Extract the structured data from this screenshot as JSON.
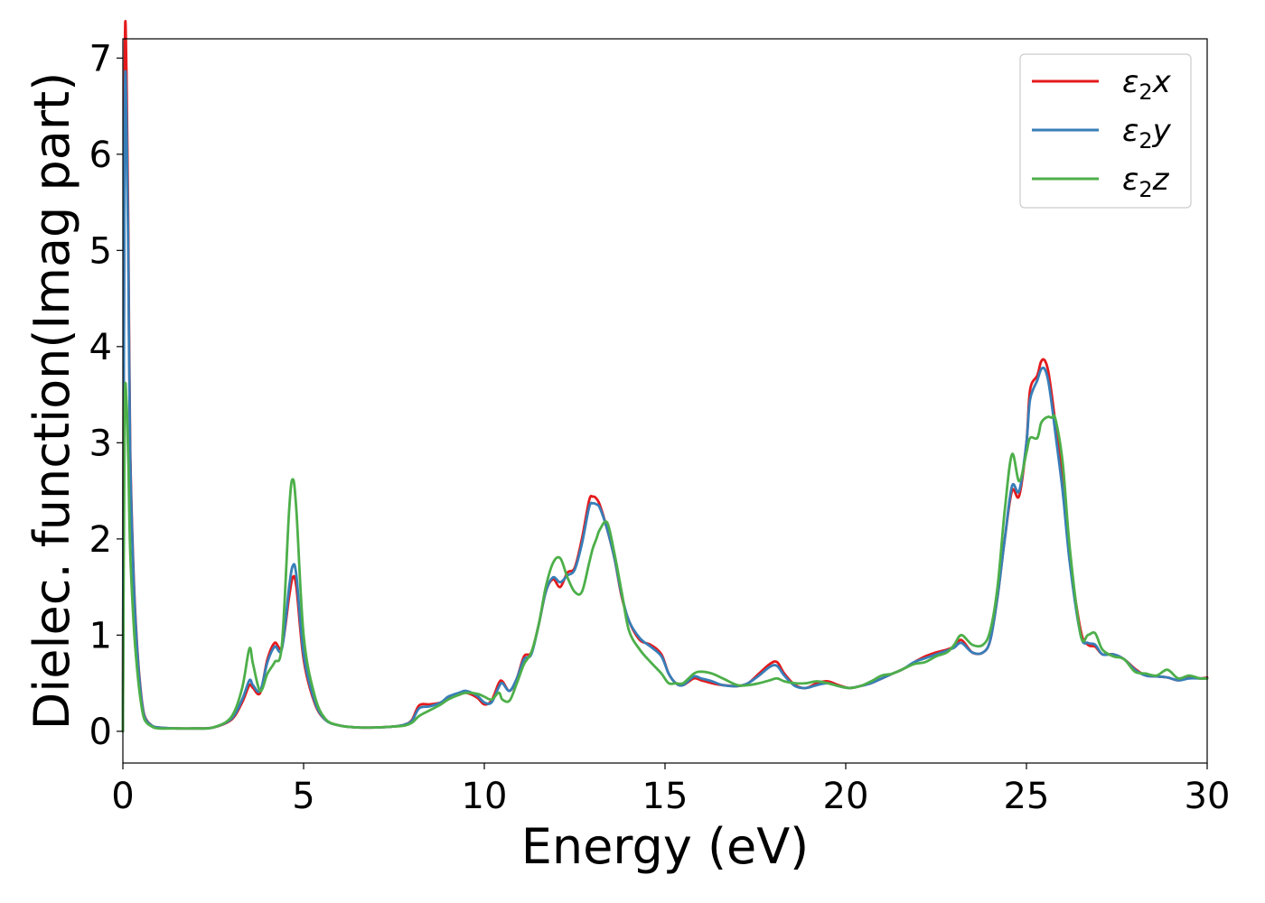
{
  "chart_data": {
    "type": "line",
    "title": "",
    "xlabel": "Energy (eV)",
    "ylabel": "Dielec. function(Imag part)",
    "xlim": [
      0,
      30
    ],
    "ylim": [
      -0.33,
      7.2
    ],
    "xticks": [
      0,
      5,
      10,
      15,
      20,
      25,
      30
    ],
    "yticks": [
      0,
      1,
      2,
      3,
      4,
      5,
      6,
      7
    ],
    "grid": false,
    "legend_placement": "top-right",
    "series": [
      {
        "name": "ε2x",
        "legend_base": "ε",
        "legend_sub": "2",
        "legend_suffix": "x",
        "color": "#e41a1c",
        "x": [
          0.0,
          0.05,
          0.1,
          0.15,
          0.2,
          0.3,
          0.4,
          0.5,
          0.6,
          0.8,
          1.0,
          1.5,
          2.0,
          2.5,
          3.0,
          3.3,
          3.5,
          3.6,
          3.8,
          4.0,
          4.2,
          4.4,
          4.6,
          4.7,
          4.8,
          5.0,
          5.3,
          5.6,
          6.0,
          6.5,
          7.0,
          7.5,
          7.8,
          8.0,
          8.2,
          8.5,
          8.8,
          9.0,
          9.3,
          9.5,
          9.8,
          10.0,
          10.2,
          10.4,
          10.5,
          10.7,
          10.9,
          11.1,
          11.3,
          11.5,
          11.7,
          11.9,
          12.1,
          12.3,
          12.5,
          12.7,
          12.9,
          13.0,
          13.1,
          13.2,
          13.4,
          13.6,
          13.8,
          14.0,
          14.3,
          14.6,
          14.9,
          15.1,
          15.3,
          15.5,
          15.8,
          16.0,
          16.3,
          16.6,
          17.0,
          17.3,
          17.6,
          17.9,
          18.1,
          18.3,
          18.6,
          18.9,
          19.2,
          19.5,
          19.8,
          20.1,
          20.4,
          20.7,
          21.0,
          21.3,
          21.6,
          21.9,
          22.2,
          22.5,
          22.8,
          23.0,
          23.2,
          23.5,
          23.8,
          24.0,
          24.2,
          24.4,
          24.6,
          24.8,
          25.0,
          25.1,
          25.3,
          25.4,
          25.5,
          25.6,
          25.7,
          25.8,
          26.0,
          26.2,
          26.5,
          26.7,
          26.9,
          27.1,
          27.4,
          27.7,
          28.0,
          28.3,
          28.6,
          28.9,
          29.2,
          29.5,
          29.8,
          30.0
        ],
        "values": [
          0.0,
          6.8,
          6.84,
          5.2,
          3.0,
          1.6,
          0.85,
          0.4,
          0.16,
          0.06,
          0.04,
          0.03,
          0.03,
          0.04,
          0.12,
          0.3,
          0.48,
          0.45,
          0.4,
          0.75,
          0.92,
          0.88,
          1.4,
          1.6,
          1.5,
          0.75,
          0.3,
          0.12,
          0.06,
          0.04,
          0.04,
          0.05,
          0.07,
          0.12,
          0.27,
          0.28,
          0.3,
          0.35,
          0.38,
          0.4,
          0.35,
          0.28,
          0.32,
          0.5,
          0.52,
          0.42,
          0.55,
          0.78,
          0.82,
          1.1,
          1.45,
          1.58,
          1.5,
          1.65,
          1.7,
          2.0,
          2.4,
          2.44,
          2.42,
          2.35,
          2.1,
          1.8,
          1.4,
          1.15,
          0.95,
          0.9,
          0.8,
          0.6,
          0.5,
          0.48,
          0.55,
          0.53,
          0.5,
          0.48,
          0.47,
          0.5,
          0.6,
          0.7,
          0.72,
          0.6,
          0.48,
          0.45,
          0.5,
          0.52,
          0.48,
          0.45,
          0.47,
          0.5,
          0.55,
          0.6,
          0.65,
          0.72,
          0.78,
          0.82,
          0.85,
          0.88,
          0.95,
          0.82,
          0.82,
          0.95,
          1.4,
          2.0,
          2.5,
          2.45,
          3.0,
          3.55,
          3.7,
          3.84,
          3.86,
          3.75,
          3.5,
          3.2,
          2.6,
          1.8,
          1.05,
          0.9,
          0.88,
          0.8,
          0.8,
          0.75,
          0.65,
          0.58,
          0.57,
          0.56,
          0.53,
          0.56,
          0.55,
          0.56
        ]
      },
      {
        "name": "ε2y",
        "legend_base": "ε",
        "legend_sub": "2",
        "legend_suffix": "y",
        "color": "#377eb8",
        "x": [
          0.0,
          0.05,
          0.1,
          0.15,
          0.2,
          0.3,
          0.4,
          0.5,
          0.6,
          0.8,
          1.0,
          1.5,
          2.0,
          2.5,
          3.0,
          3.3,
          3.5,
          3.6,
          3.8,
          4.0,
          4.2,
          4.4,
          4.6,
          4.7,
          4.8,
          5.0,
          5.3,
          5.6,
          6.0,
          6.5,
          7.0,
          7.5,
          7.8,
          8.0,
          8.2,
          8.5,
          8.8,
          9.0,
          9.3,
          9.5,
          9.8,
          10.0,
          10.2,
          10.4,
          10.5,
          10.7,
          10.9,
          11.1,
          11.3,
          11.5,
          11.7,
          11.9,
          12.1,
          12.3,
          12.5,
          12.7,
          12.9,
          13.0,
          13.1,
          13.2,
          13.4,
          13.6,
          13.8,
          14.0,
          14.3,
          14.6,
          14.9,
          15.1,
          15.3,
          15.5,
          15.8,
          16.0,
          16.3,
          16.6,
          17.0,
          17.3,
          17.6,
          17.9,
          18.1,
          18.3,
          18.6,
          18.9,
          19.2,
          19.5,
          19.8,
          20.1,
          20.4,
          20.7,
          21.0,
          21.3,
          21.6,
          21.9,
          22.2,
          22.5,
          22.8,
          23.0,
          23.2,
          23.5,
          23.8,
          24.0,
          24.2,
          24.4,
          24.6,
          24.8,
          25.0,
          25.1,
          25.3,
          25.4,
          25.5,
          25.6,
          25.7,
          25.8,
          26.0,
          26.2,
          26.5,
          26.7,
          26.9,
          27.1,
          27.4,
          27.7,
          28.0,
          28.3,
          28.6,
          28.9,
          29.2,
          29.5,
          29.8,
          30.0
        ],
        "values": [
          0.0,
          6.3,
          6.4,
          4.9,
          2.9,
          1.55,
          0.82,
          0.38,
          0.15,
          0.06,
          0.04,
          0.03,
          0.03,
          0.04,
          0.13,
          0.33,
          0.53,
          0.48,
          0.42,
          0.72,
          0.88,
          0.86,
          1.5,
          1.72,
          1.62,
          0.8,
          0.32,
          0.12,
          0.06,
          0.04,
          0.04,
          0.05,
          0.07,
          0.11,
          0.24,
          0.26,
          0.3,
          0.36,
          0.4,
          0.42,
          0.37,
          0.3,
          0.3,
          0.46,
          0.5,
          0.42,
          0.55,
          0.75,
          0.8,
          1.1,
          1.45,
          1.6,
          1.55,
          1.62,
          1.68,
          1.95,
          2.33,
          2.37,
          2.36,
          2.32,
          2.1,
          1.8,
          1.42,
          1.15,
          0.97,
          0.88,
          0.78,
          0.6,
          0.5,
          0.48,
          0.57,
          0.55,
          0.52,
          0.48,
          0.47,
          0.5,
          0.58,
          0.67,
          0.68,
          0.58,
          0.47,
          0.45,
          0.48,
          0.5,
          0.47,
          0.45,
          0.47,
          0.5,
          0.55,
          0.6,
          0.65,
          0.72,
          0.76,
          0.8,
          0.84,
          0.87,
          0.92,
          0.82,
          0.82,
          0.95,
          1.4,
          2.0,
          2.55,
          2.5,
          3.0,
          3.45,
          3.65,
          3.76,
          3.77,
          3.65,
          3.4,
          3.1,
          2.5,
          1.75,
          1.0,
          0.92,
          0.9,
          0.8,
          0.8,
          0.75,
          0.64,
          0.58,
          0.57,
          0.56,
          0.53,
          0.55,
          0.55,
          0.55
        ]
      },
      {
        "name": "ε2z",
        "legend_base": "ε",
        "legend_sub": "2",
        "legend_suffix": "z",
        "color": "#4daf4a",
        "x": [
          0.0,
          0.05,
          0.1,
          0.15,
          0.2,
          0.3,
          0.4,
          0.5,
          0.6,
          0.8,
          1.0,
          1.5,
          2.0,
          2.5,
          3.0,
          3.3,
          3.5,
          3.6,
          3.8,
          4.0,
          4.2,
          4.4,
          4.6,
          4.7,
          4.8,
          5.0,
          5.3,
          5.6,
          6.0,
          6.5,
          7.0,
          7.5,
          7.8,
          8.0,
          8.2,
          8.5,
          8.8,
          9.0,
          9.3,
          9.5,
          9.8,
          10.0,
          10.2,
          10.4,
          10.5,
          10.7,
          10.9,
          11.1,
          11.3,
          11.5,
          11.7,
          11.9,
          12.1,
          12.3,
          12.5,
          12.7,
          12.9,
          13.0,
          13.1,
          13.2,
          13.4,
          13.6,
          13.8,
          14.0,
          14.3,
          14.6,
          14.9,
          15.1,
          15.3,
          15.5,
          15.8,
          16.0,
          16.3,
          16.6,
          17.0,
          17.3,
          17.6,
          17.9,
          18.1,
          18.3,
          18.6,
          18.9,
          19.2,
          19.5,
          19.8,
          20.1,
          20.4,
          20.7,
          21.0,
          21.3,
          21.6,
          21.9,
          22.2,
          22.5,
          22.8,
          23.0,
          23.2,
          23.5,
          23.8,
          24.0,
          24.2,
          24.4,
          24.6,
          24.8,
          25.0,
          25.1,
          25.3,
          25.4,
          25.5,
          25.6,
          25.7,
          25.8,
          26.0,
          26.2,
          26.5,
          26.7,
          26.9,
          27.1,
          27.4,
          27.7,
          28.0,
          28.3,
          28.6,
          28.9,
          29.2,
          29.5,
          29.8,
          30.0
        ],
        "values": [
          0.0,
          3.3,
          3.44,
          2.8,
          1.9,
          1.1,
          0.62,
          0.3,
          0.12,
          0.05,
          0.03,
          0.03,
          0.03,
          0.04,
          0.15,
          0.45,
          0.86,
          0.7,
          0.42,
          0.6,
          0.72,
          0.9,
          2.3,
          2.62,
          2.3,
          1.0,
          0.38,
          0.13,
          0.06,
          0.04,
          0.04,
          0.05,
          0.06,
          0.09,
          0.16,
          0.22,
          0.28,
          0.33,
          0.38,
          0.4,
          0.39,
          0.36,
          0.33,
          0.4,
          0.33,
          0.32,
          0.5,
          0.7,
          0.82,
          1.1,
          1.5,
          1.75,
          1.8,
          1.6,
          1.45,
          1.45,
          1.75,
          1.9,
          2.0,
          2.1,
          2.17,
          1.85,
          1.45,
          1.05,
          0.85,
          0.72,
          0.6,
          0.5,
          0.5,
          0.5,
          0.6,
          0.62,
          0.6,
          0.55,
          0.48,
          0.48,
          0.5,
          0.53,
          0.55,
          0.52,
          0.5,
          0.5,
          0.52,
          0.5,
          0.47,
          0.45,
          0.47,
          0.52,
          0.58,
          0.6,
          0.65,
          0.7,
          0.72,
          0.78,
          0.82,
          0.9,
          1.0,
          0.9,
          0.9,
          1.05,
          1.5,
          2.3,
          2.88,
          2.6,
          2.9,
          3.05,
          3.05,
          3.2,
          3.25,
          3.27,
          3.26,
          3.25,
          2.8,
          1.9,
          1.0,
          1.0,
          1.02,
          0.85,
          0.78,
          0.75,
          0.62,
          0.6,
          0.58,
          0.64,
          0.55,
          0.58,
          0.55,
          0.55
        ]
      }
    ]
  }
}
